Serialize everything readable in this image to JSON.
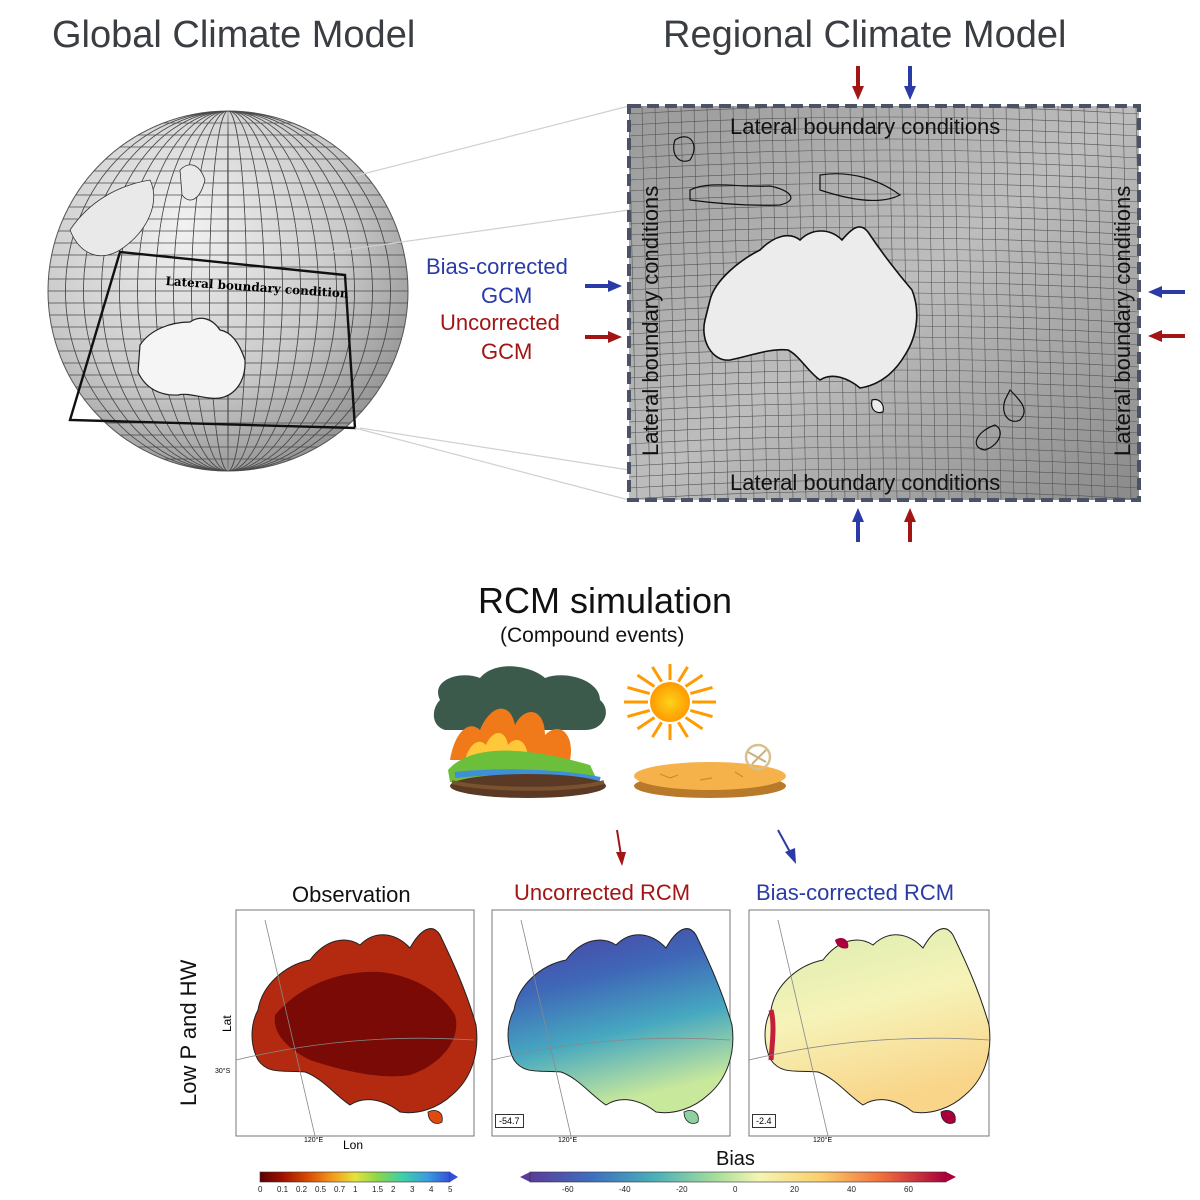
{
  "titles": {
    "gcm": "Global Climate Model",
    "rcm": "Regional Climate Model",
    "simulation": "RCM simulation",
    "simulation_sub": "(Compound events)"
  },
  "globe": {
    "box_label": "Lateral boundary condition"
  },
  "rcm_domain": {
    "top": "Lateral boundary conditions",
    "bottom": "Lateral boundary conditions",
    "left": "Lateral boundary conditions",
    "right": "Lateral boundary conditions"
  },
  "legend_inputs": {
    "bias_corrected_line1": "Bias-corrected",
    "bias_corrected_line2": "GCM",
    "uncorrected_line1": "Uncorrected",
    "uncorrected_line2": "GCM",
    "blue_color": "#2a3ba8",
    "red_color": "#a31515"
  },
  "maps": {
    "row_label": "Low P and HW",
    "observation": "Observation",
    "uncorrected": "Uncorrected RCM",
    "bias_corrected": "Bias-corrected RCM",
    "lat_label": "Lat",
    "lon_label": "Lon",
    "lat_tick": "30°S",
    "lon_tick": "120°E",
    "uncorrected_bias": "-54.7",
    "bias_corrected_bias": "-2.4"
  },
  "colorbars": {
    "obs_ticks": [
      "0",
      "0.1",
      "0.2",
      "0.5",
      "0.7",
      "1",
      "1.5",
      "2",
      "3",
      "4",
      "5"
    ],
    "bias_label": "Bias",
    "bias_ticks": [
      "-60",
      "-40",
      "-20",
      "0",
      "20",
      "40",
      "60"
    ]
  }
}
